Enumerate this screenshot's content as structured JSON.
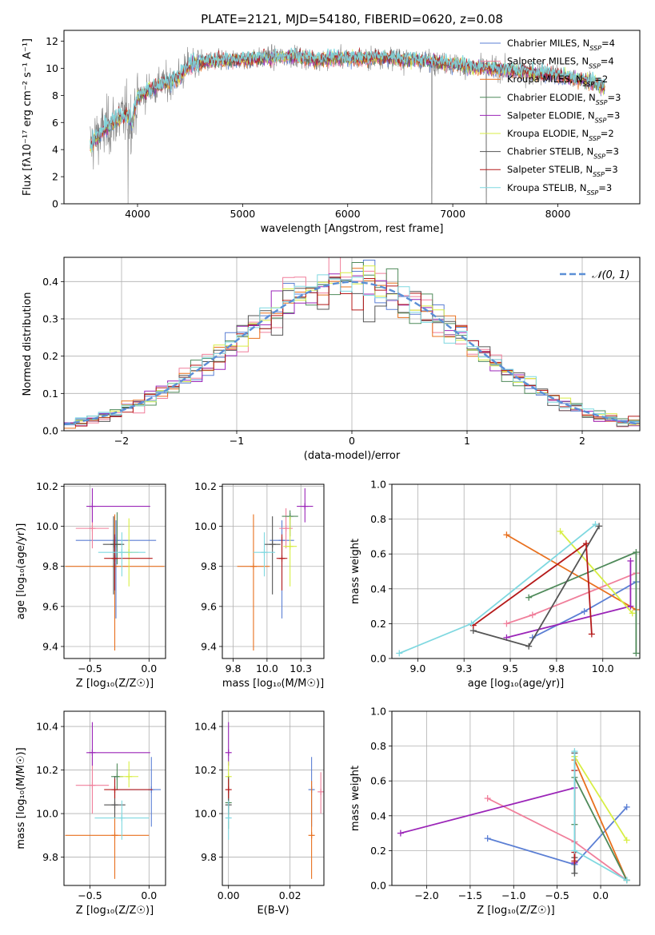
{
  "figure": {
    "title": "PLATE=2121, MJD=54180, FIBERID=0620, z=0.08"
  },
  "chart_data": [
    {
      "id": "spectrum",
      "type": "line",
      "xlabel": "wavelength [Angstrom, rest frame]",
      "ylabel": "Flux [fλ10⁻¹⁷ erg cm⁻² s⁻¹ A⁻¹]",
      "xlim": [
        3300,
        8780
      ],
      "ylim": [
        0,
        12.8
      ],
      "xticks": [
        4000,
        5000,
        6000,
        7000,
        8000
      ],
      "yticks": [
        0,
        2,
        4,
        6,
        8,
        10,
        12
      ],
      "grid": false,
      "legend_position": "right",
      "observed_color": "#808080",
      "continuum": {
        "x": [
          3550,
          3600,
          3700,
          3800,
          3900,
          3950,
          4000,
          4100,
          4200,
          4300,
          4400,
          4500,
          4700,
          4900,
          5100,
          5300,
          5500,
          5700,
          5900,
          6100,
          6300,
          6500,
          6700,
          6900,
          7100,
          7300,
          7500,
          7700,
          7900,
          8100,
          8300,
          8450
        ],
        "y": [
          4.3,
          4.8,
          5.5,
          6.2,
          6.6,
          6.0,
          7.9,
          8.3,
          8.8,
          8.9,
          9.4,
          10.3,
          10.5,
          10.6,
          10.7,
          10.8,
          10.9,
          10.6,
          10.8,
          10.7,
          10.8,
          10.7,
          10.6,
          10.4,
          10.2,
          10.0,
          9.9,
          9.7,
          9.6,
          9.3,
          9.0,
          8.6
        ]
      },
      "series": [
        {
          "name": "Chabrier MILES, N",
          "sub": "SSP",
          "suffix": "=4",
          "color": "#5b7fd4"
        },
        {
          "name": "Salpeter MILES, N",
          "sub": "SSP",
          "suffix": "=4",
          "color": "#f07f9b"
        },
        {
          "name": "Kroupa MILES, N",
          "sub": "SSP",
          "suffix": "=2",
          "color": "#e8701e"
        },
        {
          "name": "Chabrier ELODIE, N",
          "sub": "SSP",
          "suffix": "=3",
          "color": "#4f8a5a"
        },
        {
          "name": "Salpeter ELODIE, N",
          "sub": "SSP",
          "suffix": "=3",
          "color": "#9b25b8"
        },
        {
          "name": "Kroupa ELODIE, N",
          "sub": "SSP",
          "suffix": "=2",
          "color": "#d8ee44"
        },
        {
          "name": "Chabrier STELIB, N",
          "sub": "SSP",
          "suffix": "=3",
          "color": "#555555"
        },
        {
          "name": "Salpeter STELIB, N",
          "sub": "SSP",
          "suffix": "=3",
          "color": "#b51a1a"
        },
        {
          "name": "Kroupa STELIB, N",
          "sub": "SSP",
          "suffix": "=3",
          "color": "#7fd8e0"
        }
      ]
    },
    {
      "id": "residuals",
      "type": "histogram",
      "xlabel": "(data-model)/error",
      "ylabel": "Normed distribution",
      "xlim": [
        -2.5,
        2.5
      ],
      "ylim": [
        0,
        0.465
      ],
      "xticks": [
        -2,
        -1,
        0,
        1,
        2
      ],
      "yticks": [
        0.0,
        0.1,
        0.2,
        0.3,
        0.4
      ],
      "grid": true,
      "legend": "𝒩(0, 1)",
      "legend_position": "top-right",
      "normal_color": "#5b8fd6",
      "bin_width": 0.1
    },
    {
      "id": "age-vs-Z",
      "type": "scatter",
      "xlabel": "Z [log₁₀(Z/Z☉)]",
      "ylabel": "age  [log₁₀(age/yr)]",
      "xlim": [
        -0.72,
        0.14
      ],
      "ylim": [
        9.34,
        10.21
      ],
      "xticks": [
        -0.5,
        0.0
      ],
      "yticks": [
        9.4,
        9.6,
        9.8,
        10.0,
        10.2
      ],
      "grid": true,
      "points": [
        {
          "color": "#5b7fd4",
          "x": -0.28,
          "xerr": [
            0.34,
            0.34
          ],
          "y": 9.93,
          "yerr": [
            0.39,
            0.1
          ]
        },
        {
          "color": "#f07f9b",
          "x": -0.48,
          "xerr": [
            0.14,
            0.14
          ],
          "y": 9.99,
          "yerr": [
            0.1,
            0.1
          ]
        },
        {
          "color": "#e8701e",
          "x": -0.29,
          "xerr": [
            0.42,
            0.42
          ],
          "y": 9.8,
          "yerr": [
            0.42,
            0.26
          ]
        },
        {
          "color": "#4f8a5a",
          "x": -0.27,
          "xerr": [
            0.05,
            0.05
          ],
          "y": 9.91,
          "yerr": [
            0.1,
            0.16
          ]
        },
        {
          "color": "#9b25b8",
          "x": -0.48,
          "xerr": [
            0.05,
            0.49
          ],
          "y": 10.1,
          "yerr": [
            0.08,
            0.09
          ]
        },
        {
          "color": "#d8ee44",
          "x": -0.17,
          "xerr": [
            0.08,
            0.08
          ],
          "y": 9.87,
          "yerr": [
            0.17,
            0.17
          ]
        },
        {
          "color": "#555555",
          "x": -0.3,
          "xerr": [
            0.09,
            0.09
          ],
          "y": 9.91,
          "yerr": [
            0.25,
            0.14
          ]
        },
        {
          "color": "#b51a1a",
          "x": -0.29,
          "xerr": [
            0.09,
            0.32
          ],
          "y": 9.84,
          "yerr": [
            0.16,
            0.12
          ]
        },
        {
          "color": "#7fd8e0",
          "x": -0.23,
          "xerr": [
            0.2,
            0.2
          ],
          "y": 9.87,
          "yerr": [
            0.12,
            0.1
          ]
        }
      ]
    },
    {
      "id": "age-vs-mass",
      "type": "scatter",
      "xlabel": "mass [log₁₀(M/M☉)]",
      "xlim": [
        9.67,
        10.42
      ],
      "ylim": [
        9.34,
        10.21
      ],
      "xticks": [
        9.75,
        10.0,
        10.25
      ],
      "yticks": [
        9.4,
        9.6,
        9.8,
        10.0,
        10.2
      ],
      "grid": true,
      "points": [
        {
          "color": "#5b7fd4",
          "x": 10.11,
          "xerr": [
            0.09,
            0.09
          ],
          "y": 9.93,
          "yerr": [
            0.39,
            0.1
          ]
        },
        {
          "color": "#f07f9b",
          "x": 10.14,
          "xerr": [
            0.05,
            0.05
          ],
          "y": 9.99,
          "yerr": [
            0.1,
            0.1
          ]
        },
        {
          "color": "#e8701e",
          "x": 9.9,
          "xerr": [
            0.12,
            0.12
          ],
          "y": 9.8,
          "yerr": [
            0.42,
            0.26
          ]
        },
        {
          "color": "#4f8a5a",
          "x": 10.17,
          "xerr": [
            0.06,
            0.06
          ],
          "y": 10.05,
          "yerr": [
            0.1,
            0.03
          ]
        },
        {
          "color": "#9b25b8",
          "x": 10.28,
          "xerr": [
            0.06,
            0.06
          ],
          "y": 10.1,
          "yerr": [
            0.08,
            0.09
          ]
        },
        {
          "color": "#d8ee44",
          "x": 10.17,
          "xerr": [
            0.05,
            0.05
          ],
          "y": 9.9,
          "yerr": [
            0.2,
            0.15
          ]
        },
        {
          "color": "#555555",
          "x": 10.04,
          "xerr": [
            0.06,
            0.06
          ],
          "y": 9.91,
          "yerr": [
            0.25,
            0.14
          ]
        },
        {
          "color": "#b51a1a",
          "x": 10.11,
          "xerr": [
            0.04,
            0.04
          ],
          "y": 9.84,
          "yerr": [
            0.16,
            0.12
          ]
        },
        {
          "color": "#7fd8e0",
          "x": 9.98,
          "xerr": [
            0.08,
            0.08
          ],
          "y": 9.87,
          "yerr": [
            0.12,
            0.1
          ]
        }
      ]
    },
    {
      "id": "massweight-vs-age",
      "type": "line",
      "xlabel": "age  [log₁₀(age/yr)]",
      "ylabel": "mass weight",
      "xlim": [
        8.86,
        10.2
      ],
      "ylim": [
        0,
        1
      ],
      "xticks": [
        9.0,
        9.25,
        9.5,
        9.75,
        10.0
      ],
      "yticks": [
        0.0,
        0.2,
        0.4,
        0.6,
        0.8,
        1.0
      ],
      "grid": true,
      "series": [
        {
          "color": "#5b7fd4",
          "x": [
            9.62,
            9.9,
            10.18
          ],
          "y": [
            0.12,
            0.27,
            0.44
          ]
        },
        {
          "color": "#f07f9b",
          "x": [
            9.48,
            9.62,
            10.18
          ],
          "y": [
            0.2,
            0.25,
            0.49
          ]
        },
        {
          "color": "#e8701e",
          "x": [
            9.48,
            10.18
          ],
          "y": [
            0.71,
            0.28
          ]
        },
        {
          "color": "#4f8a5a",
          "x": [
            9.6,
            10.18,
            10.18
          ],
          "y": [
            0.35,
            0.61,
            0.03
          ]
        },
        {
          "color": "#9b25b8",
          "x": [
            9.48,
            10.15,
            10.15
          ],
          "y": [
            0.12,
            0.3,
            0.56
          ]
        },
        {
          "color": "#d8ee44",
          "x": [
            9.77,
            10.16
          ],
          "y": [
            0.73,
            0.26
          ]
        },
        {
          "color": "#555555",
          "x": [
            9.3,
            9.6,
            9.98
          ],
          "y": [
            0.16,
            0.07,
            0.76
          ]
        },
        {
          "color": "#b51a1a",
          "x": [
            9.3,
            9.91,
            9.94
          ],
          "y": [
            0.19,
            0.66,
            0.14
          ]
        },
        {
          "color": "#7fd8e0",
          "x": [
            8.9,
            9.29,
            9.96
          ],
          "y": [
            0.03,
            0.2,
            0.77
          ]
        }
      ]
    },
    {
      "id": "mass-vs-Z",
      "type": "scatter",
      "xlabel": "Z [log₁₀(Z/Z☉)]",
      "ylabel": "mass [log₁₀(M/M☉)]",
      "xlim": [
        -0.72,
        0.14
      ],
      "ylim": [
        9.67,
        10.47
      ],
      "xticks": [
        -0.5,
        0.0
      ],
      "yticks": [
        9.8,
        10.0,
        10.2,
        10.4
      ],
      "grid": true,
      "points": [
        {
          "color": "#5b7fd4",
          "x": 0.02,
          "xerr": [
            0.3,
            0.08
          ],
          "y": 10.11,
          "yerr": [
            0.17,
            0.15
          ]
        },
        {
          "color": "#f07f9b",
          "x": -0.48,
          "xerr": [
            0.14,
            0.14
          ],
          "y": 10.13,
          "yerr": [
            0.13,
            0.13
          ]
        },
        {
          "color": "#e8701e",
          "x": -0.29,
          "xerr": [
            0.42,
            0.29
          ],
          "y": 9.9,
          "yerr": [
            0.2,
            0.21
          ]
        },
        {
          "color": "#4f8a5a",
          "x": -0.27,
          "xerr": [
            0.05,
            0.05
          ],
          "y": 10.17,
          "yerr": [
            0.06,
            0.06
          ]
        },
        {
          "color": "#9b25b8",
          "x": -0.48,
          "xerr": [
            0.05,
            0.49
          ],
          "y": 10.28,
          "yerr": [
            0.06,
            0.14
          ]
        },
        {
          "color": "#d8ee44",
          "x": -0.17,
          "xerr": [
            0.08,
            0.08
          ],
          "y": 10.17,
          "yerr": [
            0.05,
            0.07
          ]
        },
        {
          "color": "#555555",
          "x": -0.29,
          "xerr": [
            0.09,
            0.09
          ],
          "y": 10.04,
          "yerr": [
            0.06,
            0.13
          ]
        },
        {
          "color": "#b51a1a",
          "x": -0.29,
          "xerr": [
            0.09,
            0.32
          ],
          "y": 10.11,
          "yerr": [
            0.04,
            0.05
          ]
        },
        {
          "color": "#7fd8e0",
          "x": -0.23,
          "xerr": [
            0.23,
            0.23
          ],
          "y": 9.98,
          "yerr": [
            0.1,
            0.08
          ]
        }
      ]
    },
    {
      "id": "mass-vs-ebv",
      "type": "scatter",
      "xlabel": "E(B-V)",
      "xlim": [
        -0.002,
        0.031
      ],
      "ylim": [
        9.67,
        10.47
      ],
      "xticks": [
        0.0,
        0.02
      ],
      "yticks": [
        9.8,
        10.0,
        10.2,
        10.4
      ],
      "grid": true,
      "points": [
        {
          "color": "#5b7fd4",
          "x": 0.027,
          "y": 10.11,
          "yerr": [
            0.17,
            0.15
          ]
        },
        {
          "color": "#f07f9b",
          "x": 0.03,
          "y": 10.1,
          "yerr": [
            0.1,
            0.09
          ]
        },
        {
          "color": "#e8701e",
          "x": 0.027,
          "y": 9.9,
          "yerr": [
            0.2,
            0.25
          ]
        },
        {
          "color": "#4f8a5a",
          "x": 0.0,
          "y": 10.05,
          "yerr": [
            0.12,
            0.12
          ]
        },
        {
          "color": "#9b25b8",
          "x": 0.0,
          "y": 10.28,
          "yerr": [
            0.06,
            0.14
          ]
        },
        {
          "color": "#d8ee44",
          "x": 0.0,
          "y": 10.17,
          "yerr": [
            0.05,
            0.07
          ]
        },
        {
          "color": "#555555",
          "x": 0.0,
          "y": 10.04,
          "yerr": [
            0.06,
            0.13
          ]
        },
        {
          "color": "#b51a1a",
          "x": 0.0,
          "y": 10.11,
          "yerr": [
            0.04,
            0.05
          ]
        },
        {
          "color": "#7fd8e0",
          "x": 0.0,
          "y": 9.98,
          "yerr": [
            0.1,
            0.08
          ]
        }
      ]
    },
    {
      "id": "massweight-vs-Z",
      "type": "line",
      "xlabel": "Z [log₁₀(Z/Z☉)]",
      "ylabel": "mass weight",
      "xlim": [
        -2.4,
        0.45
      ],
      "ylim": [
        0,
        1
      ],
      "xticks": [
        -2.0,
        -1.5,
        -1.0,
        -0.5,
        0.0
      ],
      "yticks": [
        0.0,
        0.2,
        0.4,
        0.6,
        0.8,
        1.0
      ],
      "grid": true,
      "series": [
        {
          "color": "#5b7fd4",
          "x": [
            -1.3,
            -0.3,
            0.3
          ],
          "y": [
            0.27,
            0.12,
            0.45
          ]
        },
        {
          "color": "#f07f9b",
          "x": [
            -1.3,
            -0.3,
            0.3
          ],
          "y": [
            0.5,
            0.25,
            0.03
          ]
        },
        {
          "color": "#e8701e",
          "x": [
            -0.3,
            0.3
          ],
          "y": [
            0.72,
            0.03
          ]
        },
        {
          "color": "#4f8a5a",
          "x": [
            -0.3,
            -0.3,
            0.3
          ],
          "y": [
            0.35,
            0.62,
            0.03
          ]
        },
        {
          "color": "#9b25b8",
          "x": [
            -2.3,
            -0.3,
            -0.3
          ],
          "y": [
            0.3,
            0.56,
            0.13
          ]
        },
        {
          "color": "#d8ee44",
          "x": [
            -0.3,
            0.3
          ],
          "y": [
            0.74,
            0.26
          ]
        },
        {
          "color": "#555555",
          "x": [
            -0.3,
            -0.3,
            -0.3
          ],
          "y": [
            0.16,
            0.07,
            0.76
          ]
        },
        {
          "color": "#b51a1a",
          "x": [
            -0.3,
            -0.3,
            -0.3
          ],
          "y": [
            0.19,
            0.66,
            0.14
          ]
        },
        {
          "color": "#7fd8e0",
          "x": [
            -0.3,
            -0.3,
            0.3
          ],
          "y": [
            0.77,
            0.2,
            0.03
          ]
        }
      ]
    }
  ]
}
